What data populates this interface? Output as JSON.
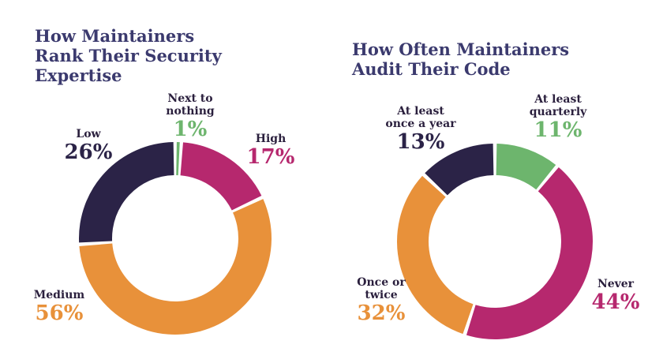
{
  "colors": {
    "title": "#3b3a6e",
    "label": "#2a1f3d",
    "dark_navy": "#2b2347",
    "magenta": "#b6286e",
    "orange": "#e8913a",
    "green": "#6db56d"
  },
  "chart_data": [
    {
      "type": "pie",
      "style": "donut",
      "title": "How Maintainers\nRank Their Security\nExpertise",
      "slices": [
        {
          "label": "Next to\nnothing",
          "value": 1,
          "value_label": "1%",
          "color": "#6db56d"
        },
        {
          "label": "High",
          "value": 17,
          "value_label": "17%",
          "color": "#b6286e"
        },
        {
          "label": "Medium",
          "value": 56,
          "value_label": "56%",
          "color": "#e8913a"
        },
        {
          "label": "Low",
          "value": 26,
          "value_label": "26%",
          "color": "#2b2347"
        }
      ]
    },
    {
      "type": "pie",
      "style": "donut",
      "title": "How Often Maintainers\nAudit Their Code",
      "slices": [
        {
          "label": "At least\nquarterly",
          "value": 11,
          "value_label": "11%",
          "color": "#6db56d"
        },
        {
          "label": "Never",
          "value": 44,
          "value_label": "44%",
          "color": "#b6286e"
        },
        {
          "label": "Once or\ntwice",
          "value": 32,
          "value_label": "32%",
          "color": "#e8913a"
        },
        {
          "label": "At least\nonce a year",
          "value": 13,
          "value_label": "13%",
          "color": "#2b2347"
        }
      ]
    }
  ]
}
